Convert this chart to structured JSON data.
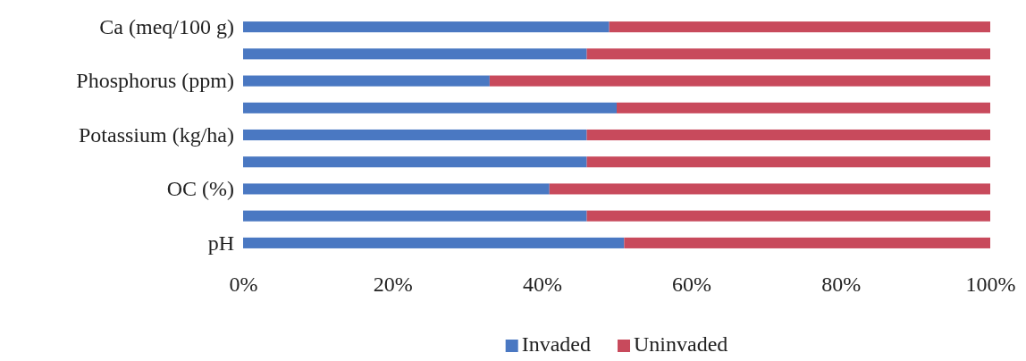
{
  "chart_data": {
    "type": "bar",
    "orientation": "horizontal",
    "stacked": true,
    "categories": [
      "Ca (meq/100 g)",
      null,
      "Phosphorus (ppm)",
      null,
      "Potassium (kg/ha)",
      null,
      "OC (%)",
      null,
      "pH"
    ],
    "series": [
      {
        "name": "Invaded",
        "color": "#4a78c2",
        "values": [
          49,
          46,
          33,
          50,
          46,
          46,
          41,
          46,
          51
        ]
      },
      {
        "name": "Uninvaded",
        "color": "#c84a5c",
        "values": [
          51,
          54,
          67,
          50,
          54,
          54,
          59,
          54,
          49
        ]
      }
    ],
    "xlim": [
      0,
      100
    ],
    "xticks": [
      {
        "value": 0,
        "label": "0%"
      },
      {
        "value": 20,
        "label": "20%"
      },
      {
        "value": 40,
        "label": "40%"
      },
      {
        "value": 60,
        "label": "60%"
      },
      {
        "value": 80,
        "label": "80%"
      },
      {
        "value": 100,
        "label": "100%"
      }
    ],
    "legend": "bottom"
  }
}
